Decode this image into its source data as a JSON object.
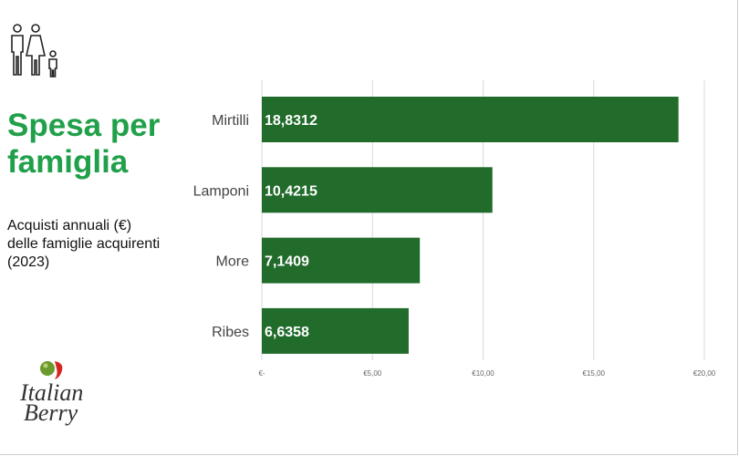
{
  "header": {
    "title_line1": "Spesa per",
    "title_line2": "famiglia",
    "subtitle_line1": "Acquisti annuali (€)",
    "subtitle_line2": "delle famiglie acquirenti",
    "subtitle_line3": "(2023)"
  },
  "logo": {
    "text_line1": "Italian",
    "text_line2": "Berry"
  },
  "icons": {
    "family": "family-icon"
  },
  "colors": {
    "bar": "#216b2b",
    "title": "#21a04a",
    "grid": "#d9d9d9"
  },
  "chart_data": {
    "type": "bar",
    "orientation": "horizontal",
    "categories": [
      "Mirtilli",
      "Lamponi",
      "More",
      "Ribes"
    ],
    "values": [
      18.8312,
      10.4215,
      7.1409,
      6.6358
    ],
    "data_labels": [
      "18,8312",
      "10,4215",
      "7,1409",
      "6,6358"
    ],
    "xlim": [
      0,
      20
    ],
    "x_ticks": [
      0,
      5,
      10,
      15,
      20
    ],
    "x_tick_labels": [
      "€-",
      "€5,00",
      "€10,00",
      "€15,00",
      "€20,00"
    ],
    "grid": true
  }
}
